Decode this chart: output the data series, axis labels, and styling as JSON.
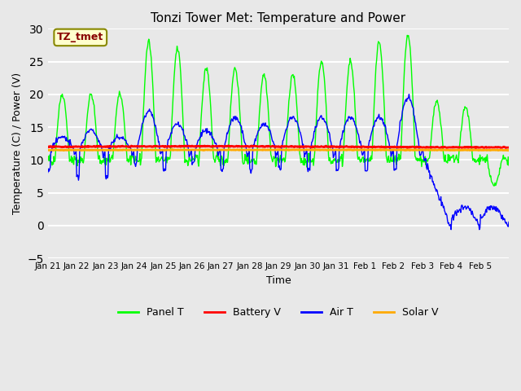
{
  "title": "Tonzi Tower Met: Temperature and Power",
  "xlabel": "Time",
  "ylabel": "Temperature (C) / Power (V)",
  "ylim": [
    -5,
    30
  ],
  "yticks": [
    -5,
    0,
    5,
    10,
    15,
    20,
    25,
    30
  ],
  "background_color": "#e8e8e8",
  "plot_bg_color": "#e8e8e8",
  "grid_color": "#ffffff",
  "x_labels": [
    "Jan 21",
    "Jan 22",
    "Jan 23",
    "Jan 24",
    "Jan 25",
    "Jan 26",
    "Jan 27",
    "Jan 28",
    "Jan 29",
    "Jan 30",
    "Jan 31",
    "Feb 1",
    "Feb 2",
    "Feb 3",
    "Feb 4",
    "Feb 5"
  ],
  "panel_t_color": "#00ff00",
  "battery_v_color": "#ff0000",
  "air_t_color": "#0000ff",
  "solar_v_color": "#ffaa00",
  "annotation_text": "TZ_tmet",
  "annotation_bg": "#ffffcc",
  "annotation_border": "#888800",
  "annotation_text_color": "#880000",
  "legend_labels": [
    "Panel T",
    "Battery V",
    "Air T",
    "Solar V"
  ],
  "legend_colors": [
    "#00ff00",
    "#ff0000",
    "#0000ff",
    "#ffaa00"
  ]
}
